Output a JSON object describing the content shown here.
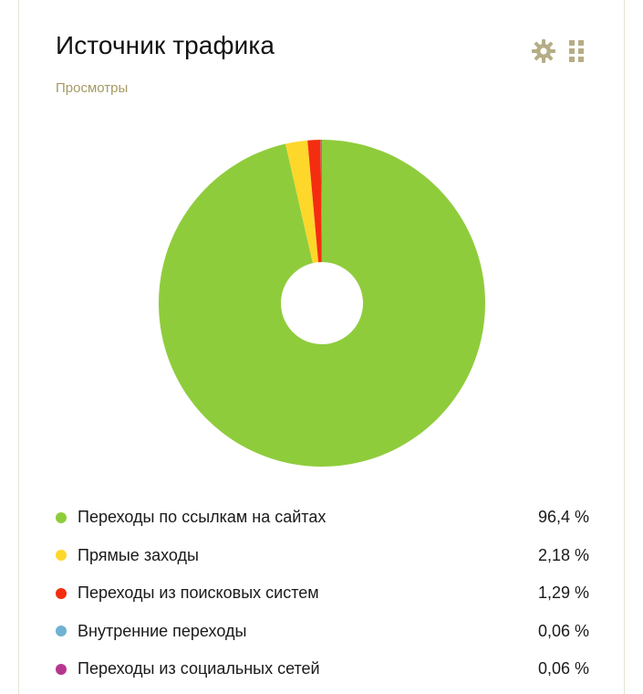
{
  "header": {
    "title": "Источник трафика",
    "subtitle": "Просмотры",
    "icons": [
      "gear-icon",
      "drag-grip-icon"
    ],
    "icon_color": "#b5ad86"
  },
  "chart_data": {
    "type": "pie",
    "title": "Источник трафика",
    "subtitle": "Просмотры",
    "legend_position": "bottom",
    "slices": [
      {
        "name": "Переходы по ссылкам на сайтах",
        "value": 96.4,
        "label": "96,4 %",
        "color": "#8fcc3c"
      },
      {
        "name": "Прямые заходы",
        "value": 2.18,
        "label": "2,18 %",
        "color": "#fdd72a"
      },
      {
        "name": "Переходы из поисковых систем",
        "value": 1.29,
        "label": "1,29 %",
        "color": "#f42d10"
      },
      {
        "name": "Внутренние переходы",
        "value": 0.06,
        "label": "0,06 %",
        "color": "#6fb2d3"
      },
      {
        "name": "Переходы из социальных сетей",
        "value": 0.06,
        "label": "0,06 %",
        "color": "#b6368f"
      }
    ]
  }
}
